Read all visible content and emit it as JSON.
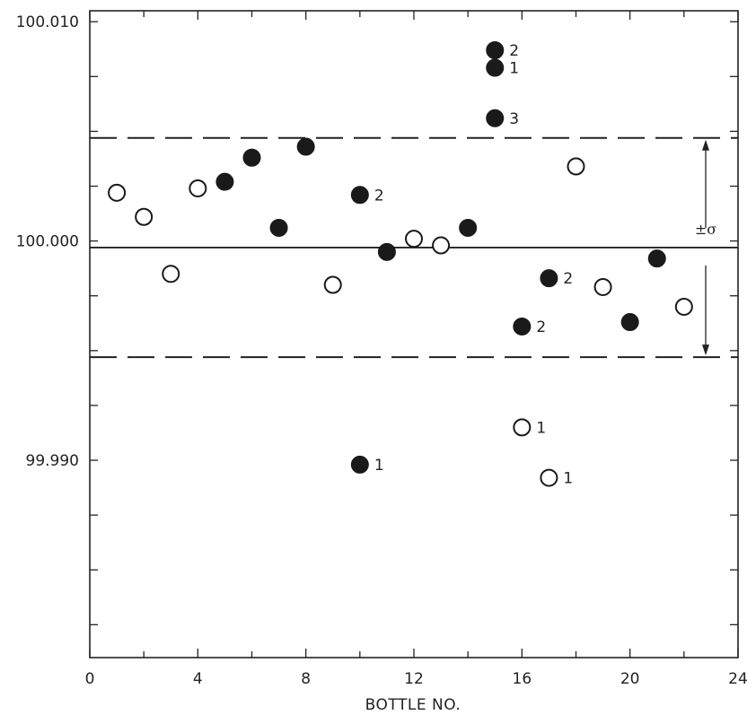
{
  "chart_data": {
    "type": "scatter",
    "title": "",
    "xlabel": "BOTTLE NO.",
    "ylabel": "",
    "xlim": [
      0,
      24
    ],
    "ylim": [
      99.981,
      100.0105
    ],
    "x_ticks": [
      0,
      4,
      8,
      12,
      16,
      20,
      24
    ],
    "x_tick_labels": [
      "0",
      "4",
      "8",
      "12",
      "16",
      "20",
      "24"
    ],
    "y_ticks": [
      99.99,
      100.0,
      100.01
    ],
    "y_tick_labels": [
      "99.990",
      "100.000",
      "100.010"
    ],
    "mean_line": 99.9997,
    "sigma_band": [
      99.9947,
      100.0047
    ],
    "sigma_label": "±σ",
    "series": [
      {
        "marker": "open-circle",
        "points": [
          {
            "x": 1,
            "y": 100.0022,
            "label": ""
          },
          {
            "x": 2,
            "y": 100.0011,
            "label": ""
          },
          {
            "x": 3,
            "y": 99.9985,
            "label": ""
          },
          {
            "x": 4,
            "y": 100.0024,
            "label": ""
          },
          {
            "x": 9,
            "y": 99.998,
            "label": ""
          },
          {
            "x": 12,
            "y": 100.0001,
            "label": ""
          },
          {
            "x": 13,
            "y": 99.9998,
            "label": ""
          },
          {
            "x": 16,
            "y": 99.9915,
            "label": "1"
          },
          {
            "x": 17,
            "y": 99.9892,
            "label": "1"
          },
          {
            "x": 18,
            "y": 100.0034,
            "label": ""
          },
          {
            "x": 19,
            "y": 99.9979,
            "label": ""
          },
          {
            "x": 22,
            "y": 99.997,
            "label": ""
          }
        ]
      },
      {
        "marker": "filled-circle",
        "points": [
          {
            "x": 5,
            "y": 100.0027,
            "label": ""
          },
          {
            "x": 6,
            "y": 100.0038,
            "label": ""
          },
          {
            "x": 7,
            "y": 100.0006,
            "label": ""
          },
          {
            "x": 8,
            "y": 100.0043,
            "label": ""
          },
          {
            "x": 10,
            "y": 100.0021,
            "label": "2"
          },
          {
            "x": 10,
            "y": 99.9898,
            "label": "1"
          },
          {
            "x": 11,
            "y": 99.9995,
            "label": ""
          },
          {
            "x": 14,
            "y": 100.0006,
            "label": ""
          },
          {
            "x": 15,
            "y": 100.0087,
            "label": "2"
          },
          {
            "x": 15,
            "y": 100.0079,
            "label": "1"
          },
          {
            "x": 15,
            "y": 100.0056,
            "label": "3"
          },
          {
            "x": 16,
            "y": 99.9961,
            "label": "2"
          },
          {
            "x": 17,
            "y": 99.9983,
            "label": "2"
          },
          {
            "x": 20,
            "y": 99.9963,
            "label": ""
          },
          {
            "x": 21,
            "y": 99.9992,
            "label": ""
          }
        ]
      }
    ]
  }
}
